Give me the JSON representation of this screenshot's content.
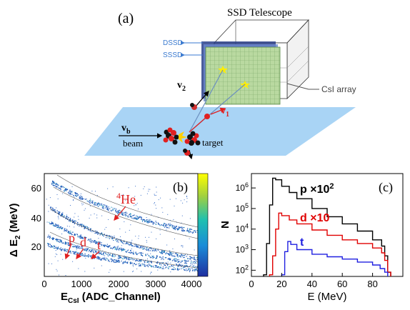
{
  "panel_a": {
    "label": "(a)",
    "telescope_label": "SSD Telescope",
    "dssd_label": "DSSD",
    "sssd_label": "SSSD",
    "csi_label": "CsI array",
    "v2_label": "v",
    "v2_sub": "2",
    "v1_label": "v",
    "v1_sub": "1",
    "vb_label": "v",
    "vb_sub": "b",
    "beam_label": "beam",
    "target_label": "target"
  },
  "panel_b": {
    "label": "(b)",
    "ylabel_main": "Δ E",
    "ylabel_sub": "2",
    "ylabel_unit": " (MeV)",
    "xlabel_main": "E",
    "xlabel_sub": "CsI",
    "xlabel_unit": " (ADC_Channel)",
    "xticks": [
      "0",
      "1000",
      "2000",
      "3000",
      "4000"
    ],
    "yticks": [
      "20",
      "40",
      "60"
    ],
    "he4_sup": "4",
    "he4_label": "He",
    "p_label": "p",
    "d_label": "d",
    "t_label": "t",
    "colors": {
      "curve_low": "#1c58b8",
      "colorbar_top": "#ffff00",
      "colorbar_bottom": "#1f2fa0"
    }
  },
  "chart_data": [
    {
      "type": "line",
      "title": "(c)",
      "xlabel": "E (MeV)",
      "ylabel": "N",
      "xlim": [
        0,
        100
      ],
      "ylim": [
        50,
        5000000
      ],
      "yscale": "log",
      "x_ticks": [
        "0",
        "20",
        "40",
        "60",
        "80"
      ],
      "y_ticks": [
        "10^2",
        "10^3",
        "10^4",
        "10^5",
        "10^6"
      ],
      "series": [
        {
          "name": "p ×10^2",
          "color": "#000000",
          "x": [
            8,
            10,
            12,
            14,
            16,
            20,
            25,
            30,
            40,
            50,
            60,
            70,
            80,
            86,
            88,
            90,
            92
          ],
          "y": [
            60,
            2000,
            150000,
            3000000,
            2500000,
            1200000,
            600000,
            300000,
            100000,
            40000,
            18000,
            8000,
            3000,
            1500,
            500,
            80,
            50
          ]
        },
        {
          "name": "d ×10",
          "color": "#e00000",
          "x": [
            12,
            14,
            16,
            18,
            20,
            25,
            30,
            40,
            50,
            60,
            70,
            80,
            86,
            88,
            90,
            92
          ],
          "y": [
            60,
            500,
            10000,
            60000,
            45000,
            28000,
            18000,
            9000,
            5000,
            3000,
            2000,
            1200,
            700,
            300,
            80,
            50
          ]
        },
        {
          "name": "t",
          "color": "#1f1fe0",
          "x": [
            20,
            22,
            24,
            26,
            30,
            40,
            50,
            60,
            70,
            80,
            85,
            88,
            90
          ],
          "y": [
            60,
            800,
            2500,
            1800,
            1000,
            600,
            450,
            350,
            250,
            180,
            120,
            80,
            50
          ]
        }
      ]
    }
  ],
  "panel_c": {
    "label": "(c)",
    "ylabel": "N",
    "xlabel": "E (MeV)",
    "p_label": "p",
    "p_factor": " ×10",
    "p_exp": "2",
    "d_label": "d",
    "d_factor": " ×10",
    "t_label": "t"
  }
}
